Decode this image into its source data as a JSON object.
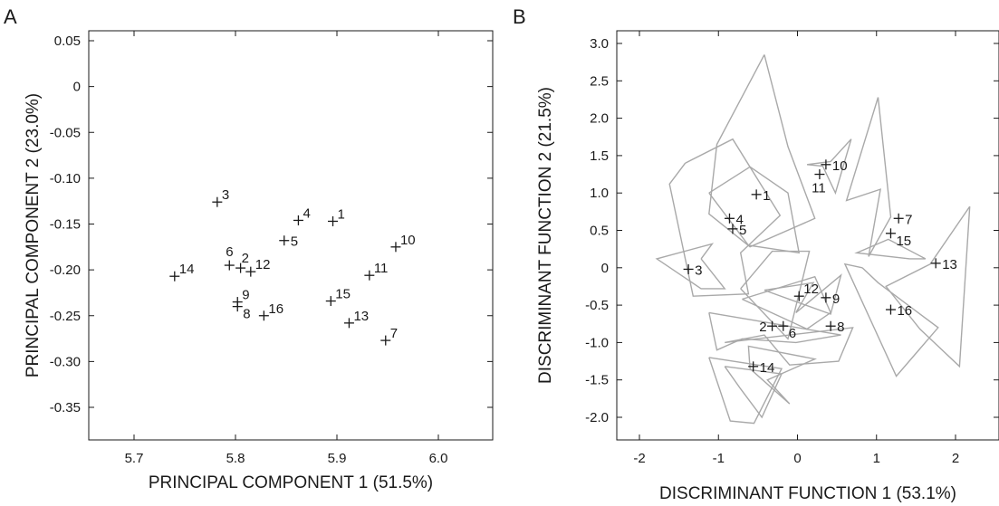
{
  "chart_data": [
    {
      "type": "scatter",
      "panel": "A",
      "xlabel": "PRINCIPAL COMPONENT 1 (51.5%)",
      "ylabel": "PRINCIPAL COMPONENT 2 (23.0%)",
      "xlim": [
        5.65,
        6.08
      ],
      "ylim": [
        -0.385,
        0.05
      ],
      "xticks": [
        5.7,
        5.8,
        5.9,
        6.0
      ],
      "xtick_labels": [
        "5.7",
        "5.8",
        "5.9",
        "6.0"
      ],
      "yticks": [
        0.05,
        0,
        -0.05,
        -0.1,
        -0.15,
        -0.2,
        -0.25,
        -0.3,
        -0.35
      ],
      "ytick_labels": [
        "0.05",
        "0",
        "-0.05",
        "-0.10",
        "-0.15",
        "-0.20",
        "-0.25",
        "-0.30",
        "-0.35"
      ],
      "points": [
        {
          "label": "1",
          "x": 5.896,
          "y": -0.147,
          "pos": "ur"
        },
        {
          "label": "2",
          "x": 5.805,
          "y": -0.198,
          "pos": "ul"
        },
        {
          "label": "3",
          "x": 5.782,
          "y": -0.126,
          "pos": "ur"
        },
        {
          "label": "4",
          "x": 5.862,
          "y": -0.146,
          "pos": "ur"
        },
        {
          "label": "5",
          "x": 5.848,
          "y": -0.168,
          "pos": "r"
        },
        {
          "label": "6",
          "x": 5.794,
          "y": -0.195,
          "pos": "up"
        },
        {
          "label": "7",
          "x": 5.948,
          "y": -0.277,
          "pos": "ur"
        },
        {
          "label": "8",
          "x": 5.802,
          "y": -0.24,
          "pos": "rd"
        },
        {
          "label": "9",
          "x": 5.802,
          "y": -0.235,
          "pos": "ur"
        },
        {
          "label": "10",
          "x": 5.958,
          "y": -0.175,
          "pos": "ur"
        },
        {
          "label": "11",
          "x": 5.932,
          "y": -0.206,
          "pos": "ur"
        },
        {
          "label": "12",
          "x": 5.815,
          "y": -0.202,
          "pos": "ur"
        },
        {
          "label": "13",
          "x": 5.912,
          "y": -0.258,
          "pos": "ur"
        },
        {
          "label": "14",
          "x": 5.74,
          "y": -0.207,
          "pos": "ur"
        },
        {
          "label": "15",
          "x": 5.894,
          "y": -0.234,
          "pos": "ur"
        },
        {
          "label": "16",
          "x": 5.828,
          "y": -0.25,
          "pos": "ur"
        }
      ]
    },
    {
      "type": "scatter",
      "panel": "B",
      "xlabel": "DISCRIMINANT FUNCTION 1 (53.1%)",
      "ylabel": "DISCRIMINANT FUNCTION 2 (21.5%)",
      "xlim": [
        -2.6,
        2.95
      ],
      "ylim": [
        -2.35,
        3.1
      ],
      "xticks": [
        -2,
        -1,
        0,
        1,
        2
      ],
      "xtick_labels": [
        "-2",
        "-1",
        "0",
        "1",
        "2"
      ],
      "yticks": [
        3.0,
        2.5,
        2.0,
        1.5,
        1.0,
        0.5,
        0,
        -0.5,
        -1.0,
        -1.5,
        -2.0
      ],
      "ytick_labels": [
        "3.0",
        "2.5",
        "2.0",
        "1.5",
        "1.0",
        "0.5",
        "0",
        "-0.5",
        "-1.0",
        "-1.5",
        "-2.0"
      ],
      "points": [
        {
          "label": "1",
          "x": -0.52,
          "y": 0.98,
          "pos": "r"
        },
        {
          "label": "2",
          "x": -0.32,
          "y": -0.78,
          "pos": "l"
        },
        {
          "label": "3",
          "x": -1.38,
          "y": -0.02,
          "pos": "r"
        },
        {
          "label": "4",
          "x": -0.86,
          "y": 0.66,
          "pos": "r"
        },
        {
          "label": "5",
          "x": -0.82,
          "y": 0.52,
          "pos": "r"
        },
        {
          "label": "6",
          "x": -0.18,
          "y": -0.78,
          "pos": "rd"
        },
        {
          "label": "7",
          "x": 1.28,
          "y": 0.66,
          "pos": "r"
        },
        {
          "label": "8",
          "x": 0.42,
          "y": -0.78,
          "pos": "r"
        },
        {
          "label": "9",
          "x": 0.36,
          "y": -0.4,
          "pos": "r"
        },
        {
          "label": "10",
          "x": 0.36,
          "y": 1.38,
          "pos": "r"
        },
        {
          "label": "11",
          "x": 0.28,
          "y": 1.25,
          "pos": "bl"
        },
        {
          "label": "12",
          "x": 0.02,
          "y": -0.38,
          "pos": "ur"
        },
        {
          "label": "13",
          "x": 1.75,
          "y": 0.06,
          "pos": "r"
        },
        {
          "label": "14",
          "x": -0.56,
          "y": -1.32,
          "pos": "r"
        },
        {
          "label": "15",
          "x": 1.18,
          "y": 0.46,
          "pos": "rd"
        },
        {
          "label": "16",
          "x": 1.18,
          "y": -0.56,
          "pos": "r"
        }
      ],
      "hulls": [
        [
          [
            -1.22,
            0.12
          ],
          [
            -1.08,
            0.32
          ],
          [
            -1.78,
            0.12
          ],
          [
            -1.22,
            -0.28
          ],
          [
            -0.92,
            -0.28
          ],
          [
            -1.22,
            0.12
          ]
        ],
        [
          [
            -1.12,
            1.0
          ],
          [
            -0.6,
            1.35
          ],
          [
            -0.12,
            1.0
          ],
          [
            0.02,
            0.2
          ],
          [
            -0.62,
            0.3
          ],
          [
            -1.12,
            1.0
          ]
        ],
        [
          [
            -1.42,
            1.4
          ],
          [
            -1.62,
            1.12
          ],
          [
            -1.32,
            -0.38
          ],
          [
            -0.62,
            -0.35
          ],
          [
            -0.72,
            0.2
          ],
          [
            -0.22,
            0.7
          ],
          [
            -0.82,
            1.72
          ],
          [
            -1.42,
            1.4
          ]
        ],
        [
          [
            -0.42,
            2.85
          ],
          [
            -0.12,
            1.62
          ],
          [
            0.22,
            0.66
          ],
          [
            -0.6,
            0.28
          ],
          [
            -1.12,
            0.72
          ],
          [
            -1.02,
            1.65
          ],
          [
            -0.42,
            2.85
          ]
        ],
        [
          [
            0.12,
            1.38
          ],
          [
            0.42,
            1.42
          ],
          [
            0.68,
            1.72
          ],
          [
            0.48,
            1.0
          ],
          [
            0.32,
            1.36
          ],
          [
            0.12,
            1.38
          ]
        ],
        [
          [
            1.02,
            2.28
          ],
          [
            1.18,
            0.68
          ],
          [
            0.9,
            0.15
          ],
          [
            1.05,
            1.05
          ],
          [
            0.62,
            0.9
          ],
          [
            1.02,
            2.28
          ]
        ],
        [
          [
            2.18,
            0.82
          ],
          [
            2.05,
            -1.32
          ],
          [
            1.55,
            -0.82
          ],
          [
            1.12,
            -0.25
          ],
          [
            1.68,
            0.05
          ],
          [
            2.18,
            0.82
          ]
        ],
        [
          [
            1.42,
            0.12
          ],
          [
            1.62,
            0.12
          ],
          [
            1.15,
            0.38
          ],
          [
            0.75,
            0.2
          ],
          [
            1.42,
            0.12
          ]
        ],
        [
          [
            0.82,
            0.0
          ],
          [
            1.02,
            -0.2
          ],
          [
            1.78,
            -0.8
          ],
          [
            1.25,
            -1.45
          ],
          [
            0.6,
            0.05
          ],
          [
            0.82,
            0.0
          ]
        ],
        [
          [
            -0.72,
            -0.28
          ],
          [
            -0.32,
            0.22
          ],
          [
            0.15,
            0.22
          ],
          [
            -0.12,
            -0.95
          ],
          [
            -0.72,
            -0.28
          ]
        ],
        [
          [
            -0.7,
            -0.42
          ],
          [
            0.12,
            -0.82
          ],
          [
            0.42,
            -0.6
          ],
          [
            0.22,
            -0.12
          ],
          [
            -0.7,
            -0.42
          ]
        ],
        [
          [
            -1.12,
            -0.6
          ],
          [
            -1.02,
            -1.1
          ],
          [
            -0.7,
            -0.95
          ],
          [
            -0.02,
            -1.0
          ],
          [
            0.55,
            -0.9
          ],
          [
            -1.12,
            -0.6
          ]
        ],
        [
          [
            -0.92,
            -1.0
          ],
          [
            -0.42,
            -0.9
          ],
          [
            -0.1,
            -1.3
          ],
          [
            0.52,
            -1.25
          ],
          [
            0.7,
            -0.8
          ],
          [
            -0.92,
            -1.0
          ]
        ],
        [
          [
            -0.42,
            -0.3
          ],
          [
            0.2,
            -0.2
          ],
          [
            -0.02,
            -0.6
          ],
          [
            0.55,
            -0.1
          ],
          [
            0.42,
            -0.62
          ],
          [
            -0.42,
            -0.3
          ]
        ],
        [
          [
            -0.6,
            -1.35
          ],
          [
            -0.1,
            -1.82
          ],
          [
            -0.38,
            -1.5
          ],
          [
            0.22,
            -1.22
          ],
          [
            -0.62,
            -1.05
          ],
          [
            -0.6,
            -1.35
          ]
        ],
        [
          [
            -0.92,
            -1.32
          ],
          [
            -0.72,
            -1.62
          ],
          [
            -0.45,
            -2.0
          ],
          [
            -0.2,
            -1.42
          ],
          [
            -0.92,
            -1.32
          ]
        ],
        [
          [
            -1.12,
            -1.2
          ],
          [
            -0.85,
            -2.05
          ],
          [
            -0.55,
            -2.08
          ],
          [
            -0.2,
            -1.35
          ],
          [
            -1.12,
            -1.2
          ]
        ]
      ]
    }
  ],
  "panels": {
    "a_label": "A",
    "b_label": "B"
  }
}
